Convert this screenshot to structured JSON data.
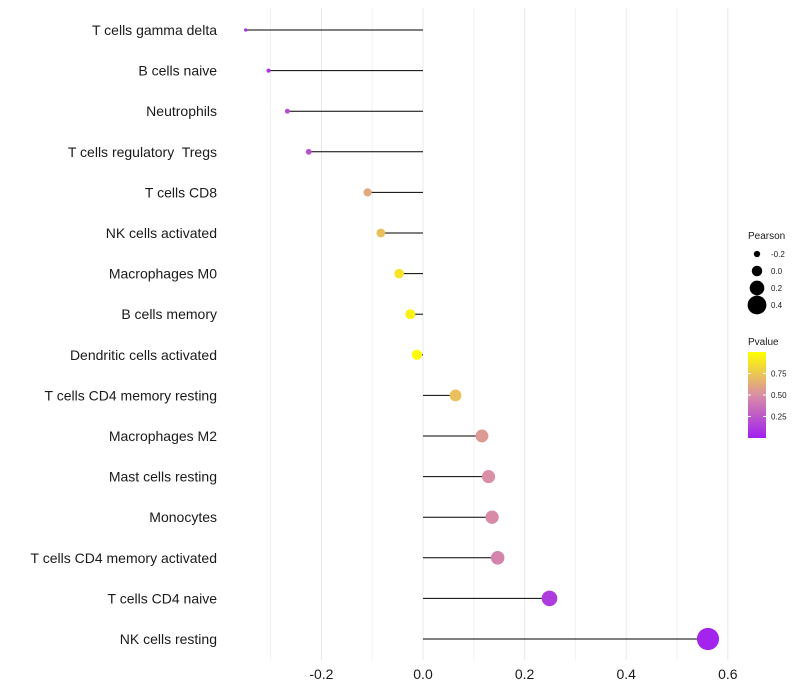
{
  "chart_data": {
    "type": "lollipop",
    "title": "",
    "xlabel": "",
    "ylabel": "",
    "xlim": [
      -0.35,
      0.6
    ],
    "x_ticks": [
      -0.2,
      0.0,
      0.2,
      0.4,
      0.6
    ],
    "x_tick_labels": [
      "-0.2",
      "0.0",
      "0.2",
      "0.4",
      "0.6"
    ],
    "grid": true,
    "baseline": 0,
    "categories": [
      "T cells gamma delta",
      "B cells naive",
      "Neutrophils",
      "T cells regulatory  Tregs",
      "T cells CD8",
      "NK cells activated",
      "Macrophages M0",
      "B cells memory",
      "Dendritic cells activated",
      "T cells CD4 memory resting",
      "Macrophages M2",
      "Mast cells resting",
      "Monocytes",
      "T cells CD4 memory activated",
      "T cells CD4 naive",
      "NK cells resting"
    ],
    "pearson": [
      -0.349,
      -0.304,
      -0.267,
      -0.225,
      -0.109,
      -0.083,
      -0.047,
      -0.025,
      -0.012,
      0.064,
      0.116,
      0.129,
      0.136,
      0.147,
      0.249,
      0.561
    ],
    "pvalue": [
      0.05,
      0.1,
      0.2,
      0.22,
      0.62,
      0.72,
      0.88,
      0.94,
      0.98,
      0.72,
      0.55,
      0.5,
      0.48,
      0.45,
      0.12,
      0.02
    ],
    "legend": {
      "size_title": "Pearson",
      "size_values": [
        -0.2,
        0.0,
        0.2,
        0.4
      ],
      "size_labels": [
        "-0.2",
        "0.0",
        "0.2",
        "0.4"
      ],
      "color_title": "Pvalue",
      "color_ticks": [
        0.75,
        0.5,
        0.25
      ],
      "color_labels": [
        "0.75",
        "0.50",
        "0.25"
      ],
      "color_range": [
        0.0,
        1.0
      ],
      "color_low": "#a020f0",
      "color_high": "#ffff00",
      "placement": "right"
    }
  }
}
